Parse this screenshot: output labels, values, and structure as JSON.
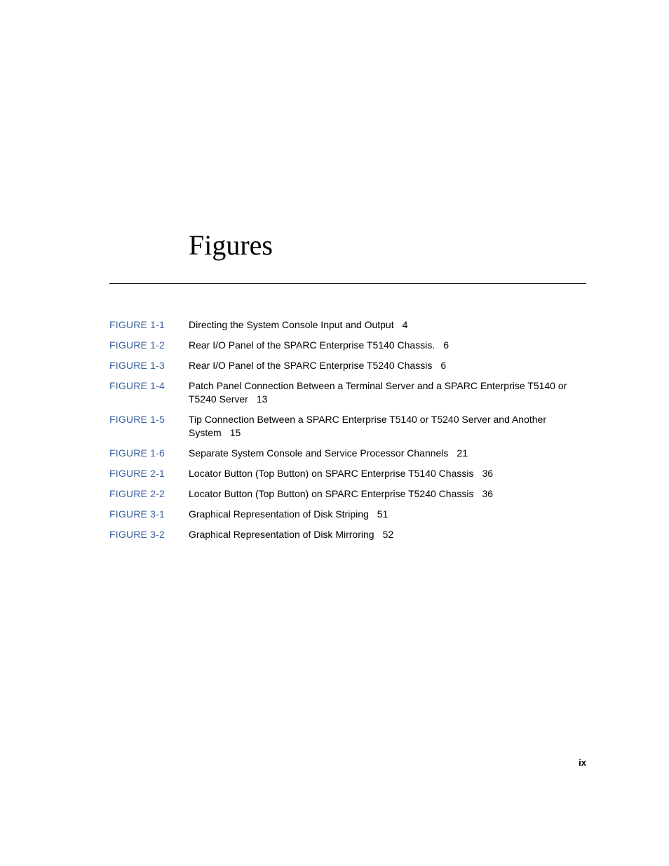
{
  "title": "Figures",
  "page_number": "ix",
  "link_color": "#3863a0",
  "text_color": "#000000",
  "background_color": "#ffffff",
  "rule_color": "#000000",
  "title_font_family": "Palatino Linotype, Palatino, Book Antiqua, Georgia, serif",
  "body_font_family": "Arial, Helvetica, sans-serif",
  "title_fontsize": 40,
  "body_fontsize": 14,
  "entries": [
    {
      "label": "FIGURE 1-1",
      "desc": "Directing the System Console Input and Output",
      "page": "4"
    },
    {
      "label": "FIGURE 1-2",
      "desc": "Rear I/O Panel of the SPARC Enterprise T5140 Chassis.",
      "page": "6"
    },
    {
      "label": "FIGURE 1-3",
      "desc": "Rear I/O Panel of the SPARC Enterprise T5240 Chassis",
      "page": "6"
    },
    {
      "label": "FIGURE 1-4",
      "desc": "Patch Panel Connection Between a Terminal Server and a SPARC Enterprise T5140 or T5240 Server",
      "page": "13"
    },
    {
      "label": "FIGURE 1-5",
      "desc": "Tip Connection Between a SPARC Enterprise T5140 or T5240 Server and Another System",
      "page": "15"
    },
    {
      "label": "FIGURE 1-6",
      "desc": "Separate System Console and Service Processor Channels",
      "page": "21"
    },
    {
      "label": "FIGURE 2-1",
      "desc": "Locator Button (Top Button) on SPARC Enterprise T5140 Chassis",
      "page": "36"
    },
    {
      "label": "FIGURE 2-2",
      "desc": "Locator Button (Top Button) on SPARC Enterprise T5240 Chassis",
      "page": "36"
    },
    {
      "label": "FIGURE 3-1",
      "desc": "Graphical Representation of Disk Striping",
      "page": "51"
    },
    {
      "label": "FIGURE 3-2",
      "desc": "Graphical Representation of Disk Mirroring",
      "page": "52"
    }
  ]
}
